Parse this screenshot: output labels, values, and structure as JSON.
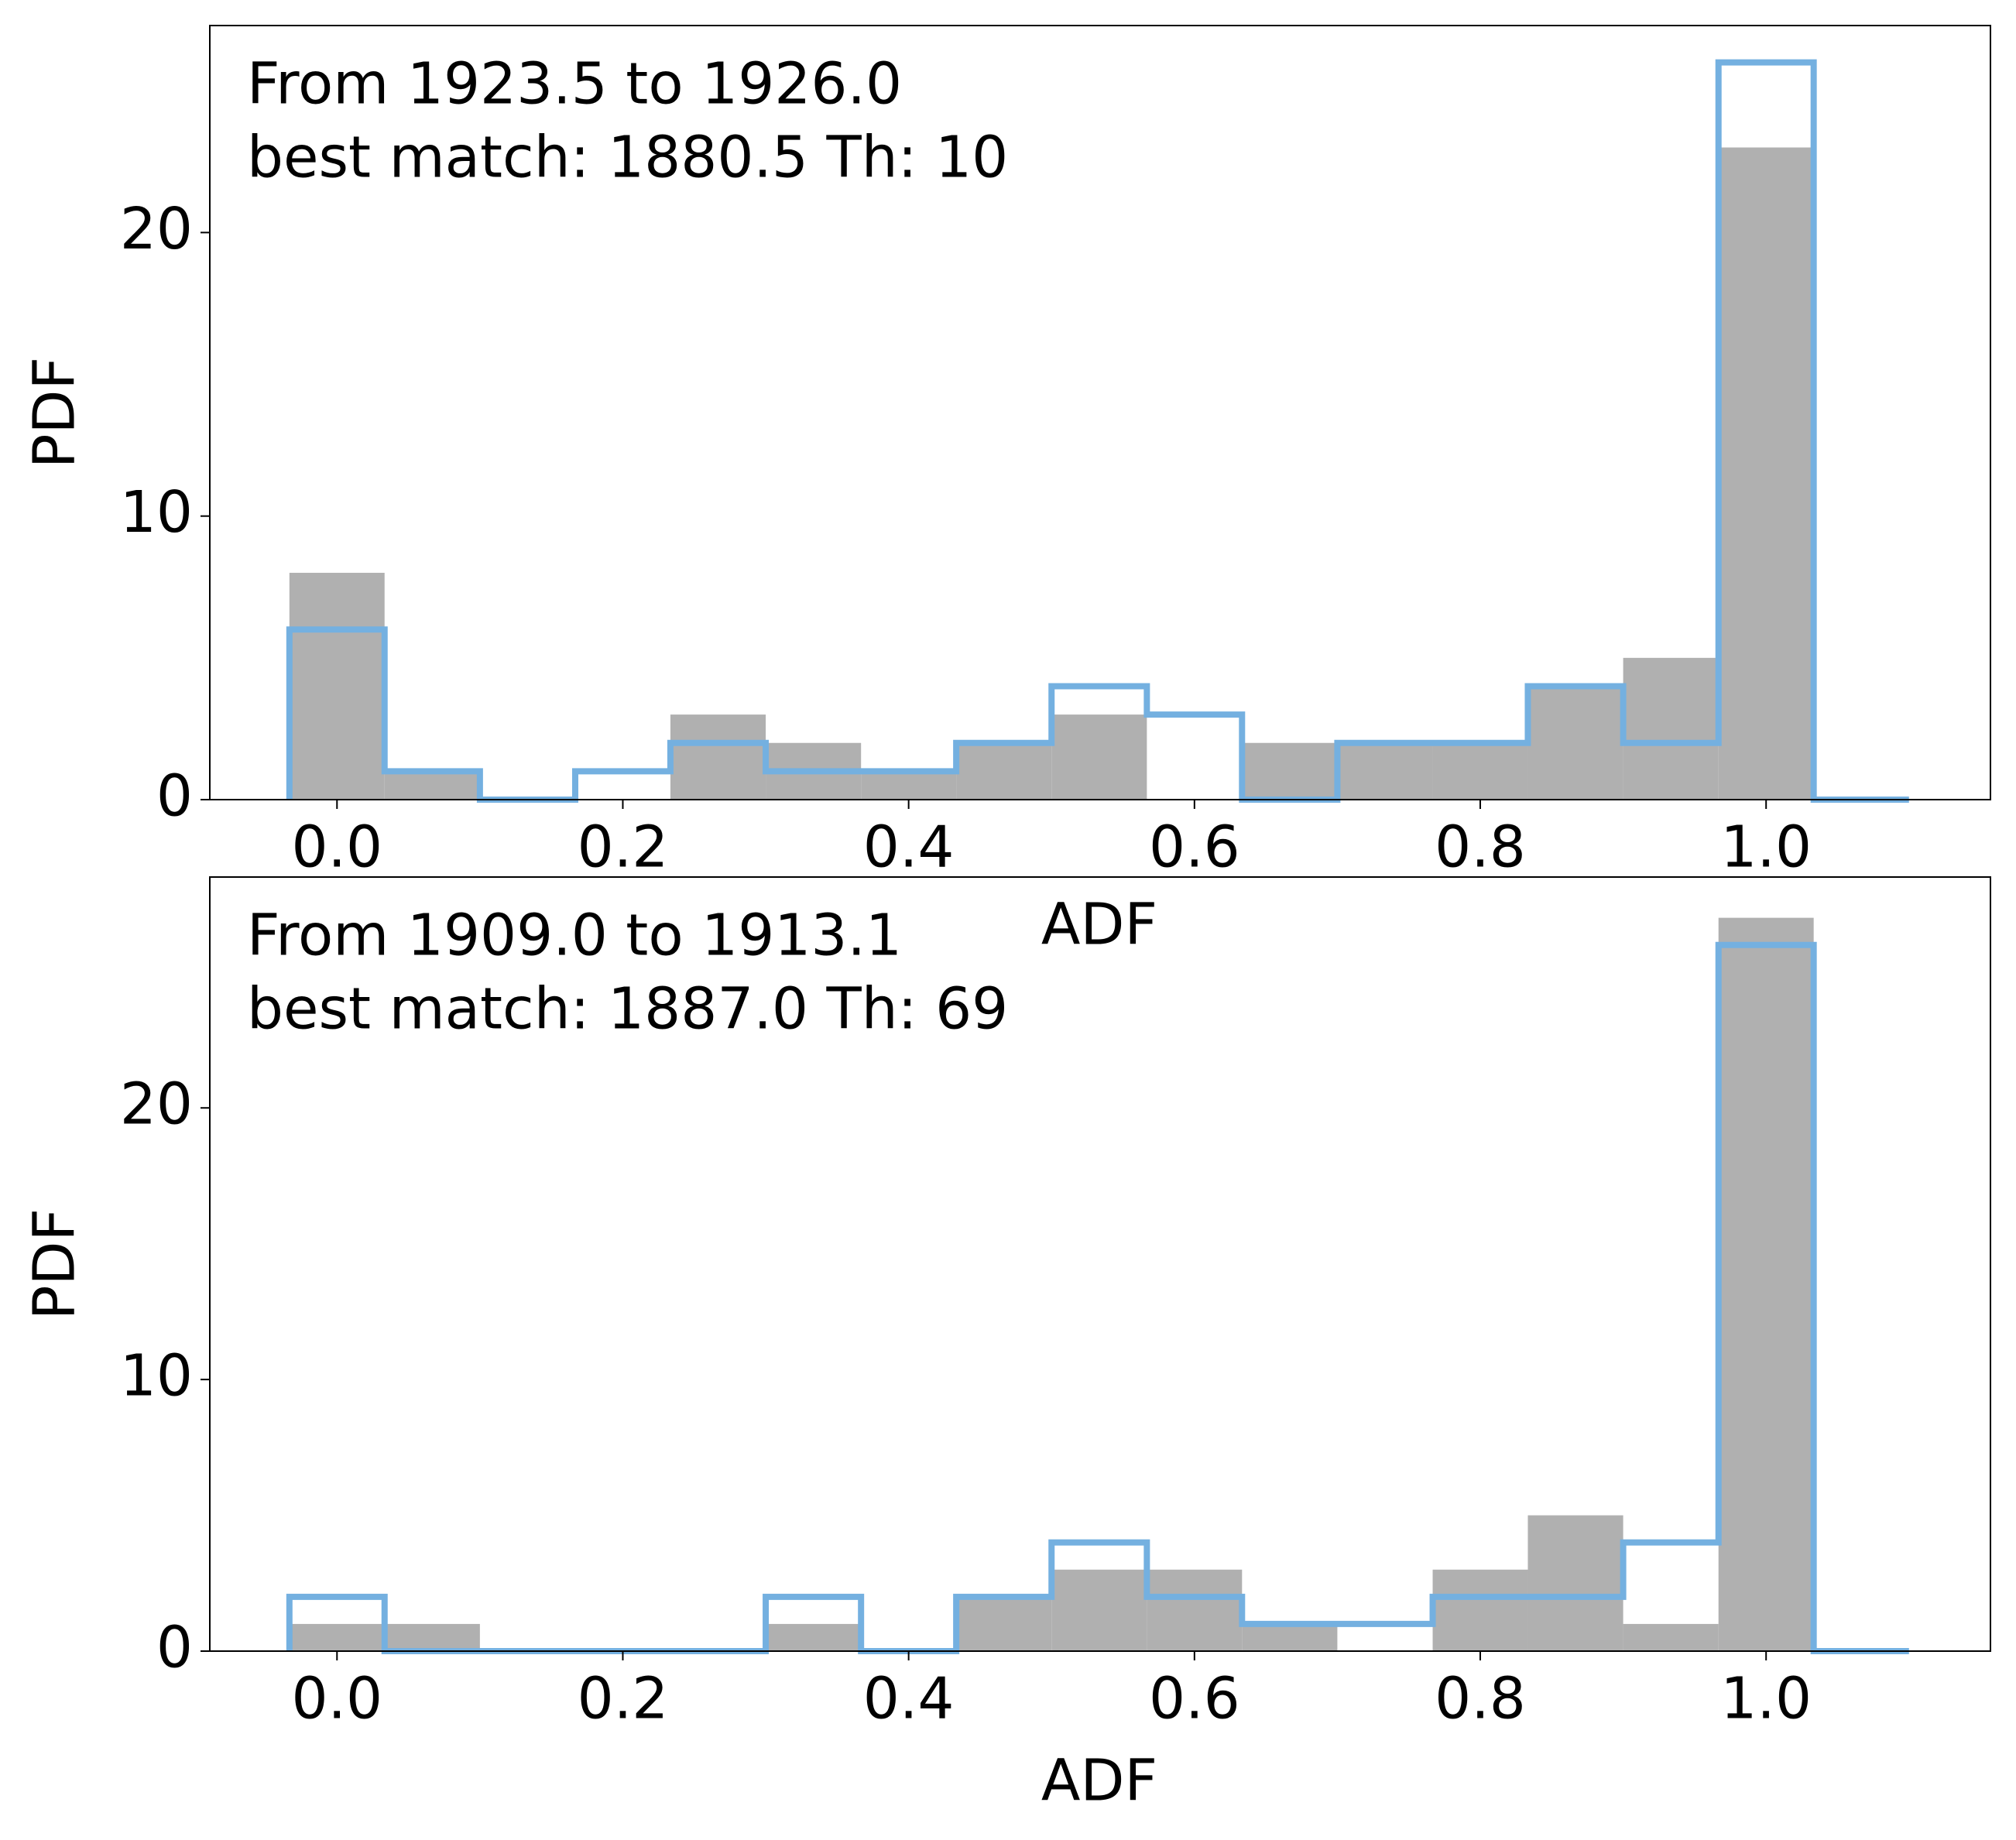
{
  "chart_data": [
    {
      "type": "histogram",
      "annotation": [
        "From 1923.5 to 1926.0",
        "best match: 1880.5  Th: 10"
      ],
      "xlabel": "ADF",
      "ylabel": "PDF",
      "bins": [
        -0.0333,
        0.0333,
        0.1,
        0.1667,
        0.2333,
        0.3,
        0.3667,
        0.4333,
        0.5,
        0.5667,
        0.6333,
        0.7,
        0.7667,
        0.8333,
        0.9,
        0.9667,
        1.0333,
        1.1
      ],
      "series": [
        {
          "histtype": "bar",
          "color": "#b0b0b0",
          "values": [
            8,
            1,
            0,
            0,
            3,
            2,
            1,
            2,
            3,
            0,
            2,
            2,
            2,
            4,
            5,
            23,
            0
          ]
        },
        {
          "histtype": "step",
          "color": "#74b0e0",
          "values": [
            6,
            1,
            0,
            1,
            2,
            1,
            1,
            2,
            4,
            3,
            0,
            2,
            2,
            4,
            2,
            26,
            0
          ]
        }
      ],
      "xlim": [
        -0.089,
        1.157
      ],
      "xticks": [
        {
          "value": 0,
          "label": "0.0"
        },
        0.2,
        0.4,
        0.6,
        0.8,
        {
          "value": 1,
          "label": "1.0"
        }
      ],
      "ylim": [
        0,
        27.3
      ],
      "yticks": [
        0,
        10,
        20
      ]
    },
    {
      "type": "histogram",
      "annotation": [
        "From 1909.0 to 1913.1",
        "best match: 1887.0  Th: 69"
      ],
      "xlabel": "ADF",
      "ylabel": "PDF",
      "bins": [
        -0.0333,
        0.0333,
        0.1,
        0.1667,
        0.2333,
        0.3,
        0.3667,
        0.4333,
        0.5,
        0.5667,
        0.6333,
        0.7,
        0.7667,
        0.8333,
        0.9,
        0.9667,
        1.0333,
        1.1
      ],
      "series": [
        {
          "histtype": "bar",
          "color": "#b0b0b0",
          "values": [
            1,
            1,
            0,
            0,
            0,
            1,
            0,
            2,
            3,
            3,
            1,
            0,
            3,
            5,
            1,
            27,
            0
          ]
        },
        {
          "histtype": "step",
          "color": "#74b0e0",
          "values": [
            2,
            0,
            0,
            0,
            0,
            2,
            0,
            2,
            4,
            2,
            1,
            1,
            2,
            2,
            4,
            26,
            0
          ]
        }
      ],
      "xlim": [
        -0.089,
        1.157
      ],
      "xticks": [
        {
          "value": 0,
          "label": "0.0"
        },
        0.2,
        0.4,
        0.6,
        0.8,
        {
          "value": 1,
          "label": "1.0"
        }
      ],
      "ylim": [
        0,
        28.5
      ],
      "yticks": [
        0,
        10,
        20
      ]
    }
  ]
}
